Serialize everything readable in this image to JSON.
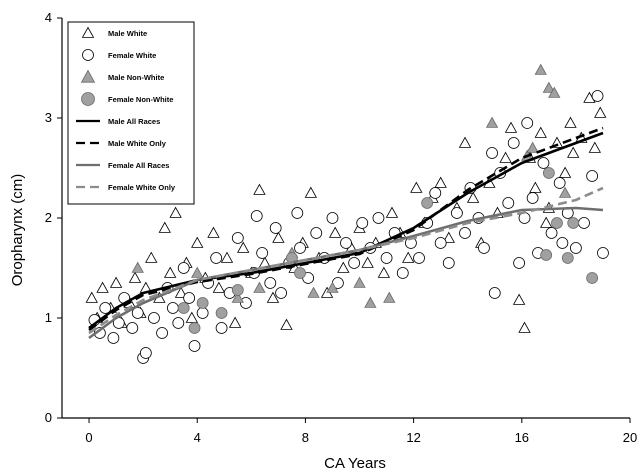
{
  "chart_data": {
    "type": "scatter",
    "xlabel": "CA Years",
    "ylabel": "Oropharynx (cm)",
    "xlim": [
      -1,
      20
    ],
    "ylim": [
      0,
      4
    ],
    "xticks": [
      0,
      4,
      8,
      12,
      16,
      20
    ],
    "yticks": [
      0,
      1,
      2,
      3,
      4
    ],
    "grid": false,
    "legend_position": "top-left",
    "legend": [
      {
        "label": "Male White",
        "marker": "open-triangle"
      },
      {
        "label": "Female White",
        "marker": "open-circle"
      },
      {
        "label": "Male Non-White",
        "marker": "gray-triangle"
      },
      {
        "label": "Female Non-White",
        "marker": "gray-circle"
      },
      {
        "label": "Male All Races",
        "line": "solid-black"
      },
      {
        "label": "Male White Only",
        "line": "dashed-black"
      },
      {
        "label": "Female All Races",
        "line": "solid-gray"
      },
      {
        "label": "Female White Only",
        "line": "dashed-gray"
      }
    ],
    "series": [
      {
        "name": "Male White",
        "marker": "open-triangle",
        "points": [
          [
            0.1,
            1.2
          ],
          [
            0.3,
            1.0
          ],
          [
            0.5,
            1.3
          ],
          [
            0.8,
            1.1
          ],
          [
            1.0,
            1.35
          ],
          [
            1.2,
            0.95
          ],
          [
            1.5,
            1.15
          ],
          [
            1.7,
            1.4
          ],
          [
            1.9,
            1.05
          ],
          [
            2.1,
            1.3
          ],
          [
            2.3,
            1.6
          ],
          [
            2.6,
            1.2
          ],
          [
            2.8,
            1.9
          ],
          [
            3.0,
            1.45
          ],
          [
            3.2,
            2.05
          ],
          [
            3.4,
            1.25
          ],
          [
            3.6,
            1.55
          ],
          [
            3.8,
            1.0
          ],
          [
            4.0,
            1.75
          ],
          [
            4.3,
            1.4
          ],
          [
            4.6,
            1.85
          ],
          [
            4.8,
            1.3
          ],
          [
            5.1,
            1.6
          ],
          [
            5.4,
            0.95
          ],
          [
            5.7,
            1.7
          ],
          [
            6.0,
            1.45
          ],
          [
            6.3,
            2.28
          ],
          [
            6.5,
            1.55
          ],
          [
            6.8,
            1.2
          ],
          [
            7.0,
            1.8
          ],
          [
            7.3,
            0.93
          ],
          [
            7.6,
            1.5
          ],
          [
            7.9,
            1.75
          ],
          [
            8.2,
            2.25
          ],
          [
            8.5,
            1.6
          ],
          [
            8.8,
            1.25
          ],
          [
            9.1,
            1.85
          ],
          [
            9.4,
            1.5
          ],
          [
            9.7,
            1.7
          ],
          [
            10.0,
            1.9
          ],
          [
            10.3,
            1.55
          ],
          [
            10.6,
            1.75
          ],
          [
            10.9,
            1.45
          ],
          [
            11.2,
            2.05
          ],
          [
            11.5,
            1.85
          ],
          [
            11.8,
            1.6
          ],
          [
            12.1,
            2.3
          ],
          [
            12.4,
            1.95
          ],
          [
            12.7,
            2.2
          ],
          [
            13.0,
            2.35
          ],
          [
            13.3,
            1.8
          ],
          [
            13.6,
            2.1
          ],
          [
            13.9,
            2.75
          ],
          [
            14.2,
            2.2
          ],
          [
            14.5,
            1.75
          ],
          [
            14.8,
            2.35
          ],
          [
            15.1,
            2.05
          ],
          [
            15.4,
            2.6
          ],
          [
            15.6,
            2.9
          ],
          [
            15.9,
            1.18
          ],
          [
            16.1,
            0.9
          ],
          [
            16.3,
            2.6
          ],
          [
            16.5,
            2.3
          ],
          [
            16.7,
            2.85
          ],
          [
            17.0,
            2.1
          ],
          [
            17.3,
            2.75
          ],
          [
            17.6,
            2.45
          ],
          [
            17.9,
            2.65
          ],
          [
            18.2,
            2.8
          ],
          [
            18.5,
            3.2
          ],
          [
            18.7,
            2.7
          ],
          [
            18.9,
            3.05
          ],
          [
            17.8,
            2.95
          ],
          [
            16.9,
            1.95
          ]
        ]
      },
      {
        "name": "Female White",
        "marker": "open-circle",
        "points": [
          [
            0.2,
            0.98
          ],
          [
            0.4,
            0.85
          ],
          [
            0.6,
            1.1
          ],
          [
            0.9,
            0.8
          ],
          [
            1.1,
            0.95
          ],
          [
            1.3,
            1.2
          ],
          [
            1.6,
            0.9
          ],
          [
            1.8,
            1.05
          ],
          [
            2.0,
            0.6
          ],
          [
            2.1,
            0.65
          ],
          [
            2.4,
            1.0
          ],
          [
            2.7,
            0.85
          ],
          [
            2.9,
            1.3
          ],
          [
            3.1,
            1.1
          ],
          [
            3.3,
            0.95
          ],
          [
            3.5,
            1.5
          ],
          [
            3.7,
            1.2
          ],
          [
            3.9,
            0.72
          ],
          [
            4.2,
            1.05
          ],
          [
            4.4,
            1.35
          ],
          [
            4.7,
            1.6
          ],
          [
            4.9,
            0.9
          ],
          [
            5.2,
            1.25
          ],
          [
            5.5,
            1.8
          ],
          [
            5.8,
            1.15
          ],
          [
            6.1,
            1.45
          ],
          [
            6.2,
            2.02
          ],
          [
            6.4,
            1.65
          ],
          [
            6.7,
            1.35
          ],
          [
            6.9,
            1.9
          ],
          [
            7.1,
            1.25
          ],
          [
            7.4,
            1.55
          ],
          [
            7.7,
            2.05
          ],
          [
            7.8,
            1.7
          ],
          [
            8.1,
            1.4
          ],
          [
            8.4,
            1.85
          ],
          [
            8.7,
            1.6
          ],
          [
            9.0,
            2.0
          ],
          [
            9.2,
            1.35
          ],
          [
            9.5,
            1.75
          ],
          [
            9.8,
            1.55
          ],
          [
            10.1,
            1.95
          ],
          [
            10.4,
            1.7
          ],
          [
            10.7,
            2.0
          ],
          [
            11.0,
            1.6
          ],
          [
            11.3,
            1.85
          ],
          [
            11.6,
            1.45
          ],
          [
            11.9,
            1.75
          ],
          [
            12.2,
            1.6
          ],
          [
            12.5,
            1.95
          ],
          [
            12.8,
            2.25
          ],
          [
            13.0,
            1.75
          ],
          [
            13.3,
            1.55
          ],
          [
            13.6,
            2.05
          ],
          [
            13.9,
            1.85
          ],
          [
            14.1,
            2.3
          ],
          [
            14.4,
            2.0
          ],
          [
            14.6,
            1.7
          ],
          [
            14.9,
            2.65
          ],
          [
            15.0,
            1.25
          ],
          [
            15.2,
            2.45
          ],
          [
            15.5,
            2.15
          ],
          [
            15.7,
            2.75
          ],
          [
            15.9,
            1.55
          ],
          [
            16.1,
            2.0
          ],
          [
            16.4,
            2.2
          ],
          [
            16.6,
            1.65
          ],
          [
            16.8,
            2.55
          ],
          [
            17.1,
            1.85
          ],
          [
            17.4,
            2.35
          ],
          [
            17.7,
            2.05
          ],
          [
            18.0,
            1.7
          ],
          [
            18.3,
            1.95
          ],
          [
            18.6,
            2.42
          ],
          [
            19.0,
            1.65
          ],
          [
            18.8,
            3.22
          ],
          [
            16.2,
            2.95
          ],
          [
            17.5,
            1.75
          ]
        ]
      },
      {
        "name": "Male Non-White",
        "marker": "gray-triangle",
        "points": [
          [
            1.8,
            1.5
          ],
          [
            4.0,
            1.45
          ],
          [
            5.5,
            1.2
          ],
          [
            6.3,
            1.3
          ],
          [
            7.5,
            1.65
          ],
          [
            8.3,
            1.25
          ],
          [
            9.0,
            1.3
          ],
          [
            10.0,
            1.35
          ],
          [
            10.4,
            1.15
          ],
          [
            11.1,
            1.2
          ],
          [
            14.9,
            2.95
          ],
          [
            16.2,
            2.62
          ],
          [
            16.7,
            3.48
          ],
          [
            17.0,
            3.3
          ],
          [
            17.2,
            3.25
          ],
          [
            17.6,
            2.25
          ],
          [
            16.4,
            2.7
          ]
        ]
      },
      {
        "name": "Female Non-White",
        "marker": "gray-circle",
        "points": [
          [
            3.5,
            1.1
          ],
          [
            3.9,
            0.9
          ],
          [
            4.2,
            1.15
          ],
          [
            4.9,
            1.05
          ],
          [
            5.5,
            1.28
          ],
          [
            7.5,
            1.6
          ],
          [
            7.8,
            1.45
          ],
          [
            12.5,
            2.15
          ],
          [
            16.9,
            1.63
          ],
          [
            17.3,
            1.95
          ],
          [
            17.7,
            1.6
          ],
          [
            17.9,
            1.95
          ],
          [
            18.6,
            1.4
          ],
          [
            17.0,
            2.45
          ]
        ]
      }
    ],
    "curves": [
      {
        "name": "Male All Races",
        "style": "solid-black",
        "points": [
          [
            0,
            0.9
          ],
          [
            1,
            1.1
          ],
          [
            2,
            1.25
          ],
          [
            4,
            1.38
          ],
          [
            6,
            1.45
          ],
          [
            8,
            1.55
          ],
          [
            10,
            1.65
          ],
          [
            12,
            1.9
          ],
          [
            14,
            2.25
          ],
          [
            16,
            2.55
          ],
          [
            18,
            2.75
          ],
          [
            19,
            2.85
          ]
        ]
      },
      {
        "name": "Male White Only",
        "style": "dashed-black",
        "points": [
          [
            0,
            0.88
          ],
          [
            1,
            1.08
          ],
          [
            2,
            1.23
          ],
          [
            4,
            1.36
          ],
          [
            6,
            1.44
          ],
          [
            8,
            1.54
          ],
          [
            10,
            1.64
          ],
          [
            12,
            1.88
          ],
          [
            14,
            2.28
          ],
          [
            16,
            2.6
          ],
          [
            18,
            2.8
          ],
          [
            19,
            2.9
          ]
        ]
      },
      {
        "name": "Female All Races",
        "style": "solid-gray",
        "points": [
          [
            0,
            0.8
          ],
          [
            1,
            1.0
          ],
          [
            2,
            1.15
          ],
          [
            4,
            1.38
          ],
          [
            6,
            1.48
          ],
          [
            8,
            1.58
          ],
          [
            10,
            1.68
          ],
          [
            12,
            1.82
          ],
          [
            14,
            1.97
          ],
          [
            16,
            2.08
          ],
          [
            18,
            2.1
          ],
          [
            19,
            2.08
          ]
        ]
      },
      {
        "name": "Female White Only",
        "style": "dashed-gray",
        "points": [
          [
            0,
            0.85
          ],
          [
            1,
            1.03
          ],
          [
            2,
            1.18
          ],
          [
            4,
            1.38
          ],
          [
            6,
            1.48
          ],
          [
            8,
            1.58
          ],
          [
            10,
            1.68
          ],
          [
            12,
            1.8
          ],
          [
            14,
            1.95
          ],
          [
            16,
            2.05
          ],
          [
            18,
            2.18
          ],
          [
            19,
            2.3
          ]
        ]
      }
    ]
  }
}
